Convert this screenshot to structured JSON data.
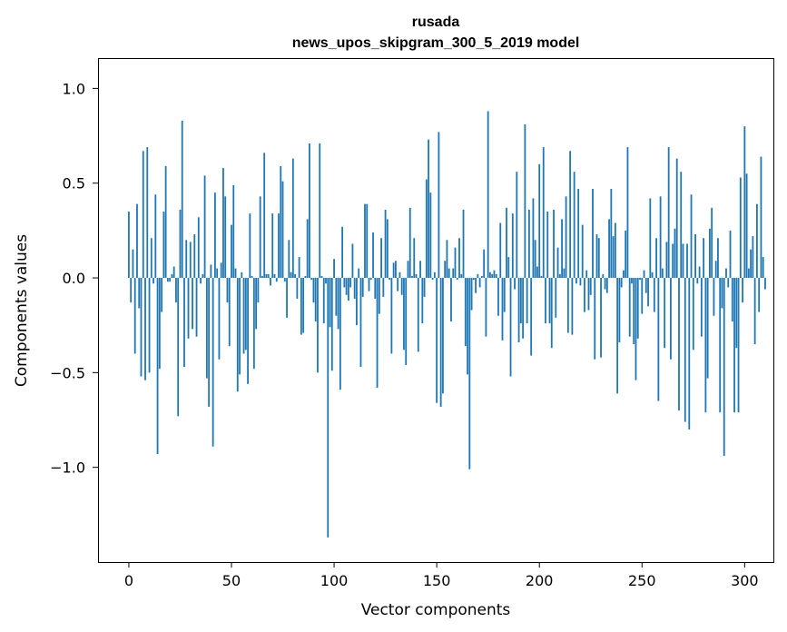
{
  "chart_data": {
    "type": "bar",
    "title": "rusada",
    "subtitle": "news_upos_skipgram_300_5_2019 model",
    "xlabel": "Vector components",
    "ylabel": "Components values",
    "xlim": [
      -15,
      314
    ],
    "ylim": [
      -1.5,
      1.16
    ],
    "xticks": [
      0,
      50,
      100,
      150,
      200,
      250,
      300
    ],
    "xtick_labels": [
      "0",
      "50",
      "100",
      "150",
      "200",
      "250",
      "300"
    ],
    "yticks": [
      -1.0,
      -0.5,
      0.0,
      0.5,
      1.0
    ],
    "ytick_labels": [
      "−1.0",
      "−0.5",
      "0.0",
      "0.5",
      "1.0"
    ],
    "series_color": "#1f77b4",
    "values": [
      0.35,
      -0.13,
      0.15,
      -0.4,
      0.39,
      -0.16,
      -0.52,
      0.67,
      -0.54,
      0.69,
      -0.5,
      0.21,
      -0.03,
      0.44,
      -0.93,
      -0.48,
      -0.18,
      0.35,
      0.59,
      -0.02,
      -0.02,
      0.02,
      0.06,
      -0.13,
      -0.73,
      0.36,
      0.83,
      -0.47,
      0.2,
      -0.32,
      0.19,
      -0.27,
      0.23,
      -0.31,
      0.32,
      -0.03,
      0.02,
      0.54,
      -0.53,
      -0.68,
      0.07,
      -0.89,
      0.45,
      0.05,
      -0.43,
      0.08,
      0.58,
      0.43,
      -0.13,
      -0.36,
      0.28,
      0.49,
      0.05,
      -0.6,
      -0.51,
      0.03,
      -0.4,
      -0.38,
      -0.56,
      0.34,
      0.01,
      -0.48,
      -0.27,
      -0.13,
      0.43,
      0.01,
      0.66,
      0.02,
      0.02,
      -0.04,
      0.34,
      0.02,
      -0.02,
      0.34,
      0.59,
      0.51,
      -0.02,
      -0.21,
      0.2,
      0.03,
      0.63,
      0.02,
      -0.11,
      0.11,
      -0.3,
      -0.29,
      0.01,
      0.31,
      0.71,
      -0.01,
      -0.13,
      -0.23,
      -0.5,
      0.71,
      0.01,
      -0.24,
      -0.03,
      -1.37,
      -0.26,
      -0.49,
      0.1,
      -0.2,
      -0.27,
      -0.59,
      0.27,
      -0.05,
      -0.09,
      -0.12,
      -0.05,
      0.18,
      -0.11,
      -0.25,
      0.05,
      -0.47,
      -0.1,
      0.39,
      0.39,
      -0.07,
      -0.01,
      0.24,
      -0.11,
      -0.58,
      -0.19,
      0.21,
      -0.1,
      0.36,
      0.31,
      -0.01,
      -0.4,
      0.08,
      0.09,
      -0.07,
      0.03,
      -0.09,
      -0.38,
      -0.46,
      0.09,
      0.37,
      0.01,
      0.21,
      0.02,
      -0.39,
      0.09,
      -0.24,
      -0.1,
      0.52,
      0.73,
      0.45,
      -0.01,
      0.03,
      -0.66,
      0.77,
      -0.68,
      -0.61,
      0.09,
      0.2,
      0.05,
      -0.23,
      0.05,
      0.16,
      -0.01,
      0.21,
      0.02,
      0.36,
      -0.36,
      -0.51,
      -1.01,
      -0.17,
      -0.01,
      -0.08,
      0.02,
      -0.05,
      0.01,
      0.15,
      -0.31,
      0.88,
      0.03,
      0.02,
      0.04,
      0.02,
      -0.2,
      0.29,
      -0.33,
      -0.18,
      0.37,
      0.11,
      -0.52,
      0.34,
      -0.06,
      0.56,
      -0.34,
      -0.24,
      -0.32,
      0.81,
      -0.24,
      0.36,
      -0.41,
      0.42,
      0.2,
      0.06,
      0.6,
      0.01,
      0.69,
      -0.24,
      0.35,
      -0.24,
      -0.37,
      0.36,
      -0.21,
      0.16,
      0.02,
      0.31,
      0.05,
      0.43,
      -0.29,
      0.67,
      -0.3,
      0.56,
      -0.03,
      0.47,
      -0.04,
      0.28,
      -0.18,
      0.04,
      -0.17,
      -0.09,
      0.47,
      -0.43,
      0.23,
      0.21,
      -0.42,
      0.02,
      -0.06,
      -0.08,
      0.31,
      0.47,
      0.22,
      0.29,
      -0.61,
      -0.34,
      -0.05,
      0.04,
      0.25,
      0.69,
      -0.31,
      -0.03,
      -0.35,
      -0.54,
      -0.32,
      -0.01,
      -0.19,
      0.04,
      -0.08,
      -0.15,
      0.42,
      0.03,
      -0.18,
      0.21,
      -0.65,
      0.43,
      0.05,
      -0.37,
      0.19,
      0.69,
      -0.43,
      0.18,
      0.26,
      0.63,
      -0.7,
      0.56,
      0.18,
      -0.76,
      0.18,
      -0.8,
      0.44,
      -0.38,
      0.23,
      -0.03,
      0.06,
      -0.31,
      0.21,
      -0.71,
      -0.53,
      0.26,
      0.37,
      -0.2,
      0.09,
      0.21,
      -0.71,
      -0.16,
      -0.94,
      0.05,
      -0.05,
      0.25,
      -0.23,
      -0.71,
      -0.37,
      -0.71,
      0.53,
      -0.13,
      0.8,
      0.55,
      0.05,
      0.15,
      0.22,
      -0.35,
      0.39,
      -0.18,
      0.64,
      0.11,
      -0.06
    ]
  }
}
